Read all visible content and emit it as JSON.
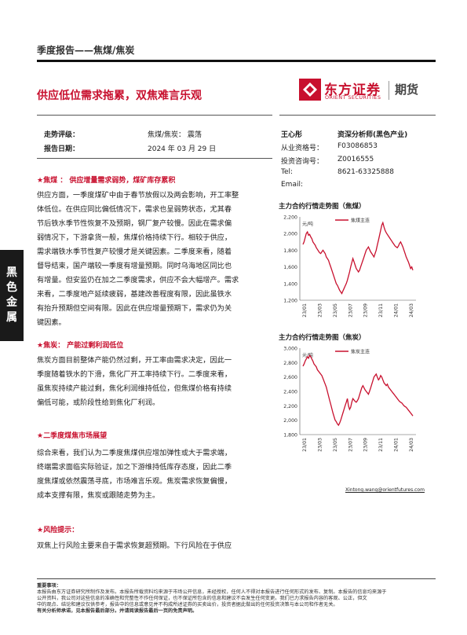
{
  "header": {
    "title": "季度报告——焦煤/焦炭"
  },
  "page_title": "供应低位需求拖累，双焦难言乐观",
  "logo": {
    "cn": "东方证券",
    "en": "ORIENT SECURITIES",
    "futures": "期货"
  },
  "meta": {
    "rating_label": "走势评级：",
    "rating_value": "焦煤/焦炭： 震荡",
    "date_label": "报告日期：",
    "date_value": "2024 年 03 月 29 日"
  },
  "side_tab": [
    "黑",
    "色",
    "金",
    "属"
  ],
  "analyst": {
    "name": "王心彤",
    "title": "资深分析师(黑色产业)",
    "rows": [
      {
        "label": "从业资格号：",
        "value": "F03086853"
      },
      {
        "label": "投资咨询号：",
        "value": "Z0016555"
      },
      {
        "label": "Tel:",
        "value": "8621-63325888"
      },
      {
        "label": "Email:",
        "value": ""
      }
    ],
    "email": "Xintong.wang@orientfutures.com"
  },
  "sections": [
    {
      "title": "★焦煤 ： 供应增量需求弱势，煤矿库存累积",
      "lines": [
        "供应方面，一季度煤矿中由于春节放假以及两会影响，开工率整",
        "体低位。在供应同比偏低情况下，需求也呈弱势状态，尤其春",
        "节后铁水季节性恢复不及预期，钢厂复产较慢。因此在需求偏",
        "弱情况下，下游拿货一般，焦煤价格持续下行。相较于供应，",
        "需求端铁水季节性复产较慢才是关键因素。二季度来看，随着",
        "督导结束，国产端较一季度有增量预期。同时乌海地区同比也",
        "有增量。但安监仍在加之二季度需求，供应不会大幅增产。需求",
        "来看，二季度地产延续疲弱，基建改善程度有限，因此虽铁水",
        "有抬升预期但空间有限。因此在供应增量预期下，需求仍为关",
        "键因素。"
      ]
    },
    {
      "title": "★焦炭： 产能过剩利润低位",
      "lines": [
        "焦炭方面目前整体产能仍然过剩，开工率由需求决定，因此一",
        "季度随着铁水的下滑，焦化厂开工率持续下行。二季度来看，",
        "虽焦炭持续产能过剩，焦化利润维持低位，但焦煤价格有持续",
        "偏低可能，或阶段性给到焦化厂利润。"
      ]
    },
    {
      "title": "★二季度煤焦市场展望",
      "lines": [
        "综合来看，我们认为二季度焦煤供应增加弹性或大于需求端，",
        "终端需求面临实际验证，加之下游维持低库存态度，因此二季",
        "度焦煤或依然震荡寻底，市场难言乐观。焦炭需求恢复偏慢，",
        "成本支撑有限，焦炭或跟随走势为主。"
      ]
    },
    {
      "title": "★风险提示：",
      "lines": [
        "双焦上行风险主要来自于需求恢复超预期。下行风险在于供应"
      ]
    }
  ],
  "charts": [
    {
      "heading": "主力合约行情走势图（焦煤）",
      "chart_data": {
        "type": "line",
        "ylabel": "元/吨",
        "series": [
          {
            "name": "焦煤主连",
            "color": "#c8102e"
          }
        ],
        "ylim": [
          1200,
          2200
        ],
        "yticks": [
          "2,200",
          "2,000",
          "1,800",
          "1,600",
          "1,400",
          "1,200"
        ],
        "xticks": [
          "23/01",
          "23/03",
          "23/05",
          "23/07",
          "23/09",
          "23/11",
          "24/01",
          "24/03"
        ],
        "values": [
          1870,
          1900,
          1950,
          2000,
          2020,
          1980,
          1990,
          1960,
          1940,
          1900,
          1880,
          1860,
          1830,
          1810,
          1790,
          1770,
          1760,
          1780,
          1800,
          1780,
          1760,
          1720,
          1700,
          1680,
          1640,
          1600,
          1560,
          1520,
          1480,
          1440,
          1400,
          1380,
          1350,
          1320,
          1300,
          1280,
          1310,
          1340,
          1370,
          1400,
          1440,
          1490,
          1540,
          1600,
          1650,
          1700,
          1660,
          1620,
          1580,
          1560,
          1540,
          1560,
          1600,
          1640,
          1680,
          1720,
          1760,
          1800,
          1820,
          1840,
          1810,
          1780,
          1760,
          1740,
          1720,
          1760,
          1800,
          1860,
          1920,
          1980,
          2040,
          2100,
          2130,
          2080,
          2040,
          2010,
          1990,
          1970,
          1950,
          1930,
          1910,
          1890,
          1870,
          1850,
          1840,
          1830,
          1850,
          1880,
          1900,
          1870,
          1840,
          1800,
          1760,
          1720,
          1690,
          1660,
          1620,
          1580,
          1600,
          1560
        ]
      }
    },
    {
      "heading": "主力合约行情走势图（焦炭）",
      "chart_data": {
        "type": "line",
        "ylabel": "元/吨",
        "series": [
          {
            "name": "焦炭主连",
            "color": "#c8102e"
          }
        ],
        "ylim": [
          1800,
          3000
        ],
        "yticks": [
          "3,000",
          "2,800",
          "2,600",
          "2,400",
          "2,200",
          "2,000",
          "1,800"
        ],
        "xticks": [
          "23/01",
          "23/03",
          "23/05",
          "23/07",
          "23/09",
          "23/11",
          "24/01",
          "24/03"
        ],
        "values": [
          2750,
          2780,
          2820,
          2850,
          2880,
          2860,
          2900,
          2880,
          2850,
          2820,
          2780,
          2760,
          2740,
          2700,
          2680,
          2660,
          2640,
          2620,
          2580,
          2540,
          2500,
          2460,
          2400,
          2340,
          2280,
          2220,
          2160,
          2100,
          2050,
          2000,
          1980,
          1950,
          1930,
          1960,
          2000,
          2050,
          2100,
          2150,
          2200,
          2250,
          2300,
          2200,
          2150,
          2180,
          2250,
          2300,
          2280,
          2260,
          2250,
          2270,
          2300,
          2350,
          2400,
          2450,
          2480,
          2450,
          2420,
          2400,
          2380,
          2360,
          2400,
          2450,
          2500,
          2550,
          2600,
          2620,
          2640,
          2600,
          2560,
          2580,
          2620,
          2600,
          2560,
          2520,
          2500,
          2480,
          2500,
          2460,
          2440,
          2420,
          2400,
          2380,
          2360,
          2340,
          2320,
          2300,
          2280,
          2260,
          2250,
          2240,
          2220,
          2200,
          2190,
          2180,
          2160,
          2140,
          2120,
          2100,
          2080,
          2060
        ]
      }
    }
  ],
  "disclaimer": {
    "head": "重要事项：",
    "lines": [
      "本报告由东方证券研究所制作及发布。本报告所载资料均来源于市场公开信息，未经授权，任何人不得对本报告进行任何形式的发布、复制。本报告的信息均来源于",
      "公开资料，我公司对这些信息的准确性和完整性不作任何保证，也不保证所包含的信息和建议不会发生任何变更。我们已力求报告内容的客观、公正，但文",
      "中的观点、结论和建议仅供参考，报告中的信息或意见并不构成所述证券的买卖出价，投资者据此做出的任何投资决策与本公司和作者无关。"
    ],
    "footer": "有关分析师承诺，见本报告最后部分。并请阅读报告最后一页的免责声明。"
  }
}
